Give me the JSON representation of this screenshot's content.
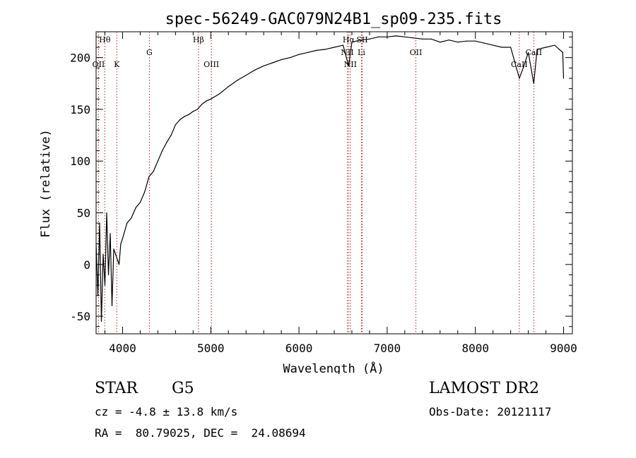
{
  "chart_data": {
    "type": "line",
    "title": "spec-56249-GAC079N24B1_sp09-235.fits",
    "xlabel": "Wavelength (Å)",
    "ylabel": "Flux (relative)",
    "xlim": [
      3700,
      9100
    ],
    "ylim": [
      -67,
      225
    ],
    "xticks": [
      4000,
      5000,
      6000,
      7000,
      8000,
      9000
    ],
    "yticks": [
      -50,
      0,
      50,
      100,
      150,
      200
    ],
    "grid": false,
    "colors": {
      "spectrum": "#000000",
      "line_markers": "#b22222",
      "axes": "#000000"
    },
    "series": [
      {
        "x": [
          3700,
          3720,
          3740,
          3760,
          3780,
          3800,
          3820,
          3840,
          3860,
          3880,
          3900,
          3920,
          3940,
          3960,
          3980,
          4000,
          4050,
          4100,
          4150,
          4200,
          4250,
          4300,
          4350,
          4400,
          4450,
          4500,
          4550,
          4600,
          4650,
          4700,
          4750,
          4800,
          4850,
          4900,
          4950,
          5000,
          5100,
          5200,
          5300,
          5400,
          5500,
          5600,
          5700,
          5800,
          5900,
          6000,
          6100,
          6200,
          6300,
          6400,
          6500,
          6563,
          6600,
          6700,
          6800,
          6900,
          7000,
          7100,
          7200,
          7300,
          7400,
          7500,
          7600,
          7700,
          7800,
          7900,
          8000,
          8100,
          8200,
          8300,
          8400,
          8498,
          8542,
          8600,
          8662,
          8700,
          8800,
          8900,
          8950,
          8990,
          9000
        ],
        "y": [
          20,
          -30,
          40,
          -55,
          10,
          -20,
          50,
          -10,
          30,
          -40,
          15,
          10,
          5,
          0,
          20,
          25,
          40,
          45,
          55,
          60,
          70,
          85,
          90,
          100,
          110,
          118,
          125,
          135,
          140,
          143,
          145,
          148,
          150,
          155,
          158,
          160,
          165,
          172,
          178,
          183,
          188,
          192,
          195,
          198,
          200,
          203,
          205,
          207,
          208,
          210,
          212,
          192,
          215,
          217,
          218,
          220,
          220,
          221,
          220,
          219,
          218,
          218,
          215,
          217,
          215,
          216,
          216,
          214,
          212,
          210,
          210,
          180,
          190,
          205,
          175,
          208,
          210,
          212,
          208,
          205,
          180
        ]
      }
    ],
    "lines": [
      {
        "label": "Hθ",
        "x": 3798,
        "row": "top"
      },
      {
        "label": "OII",
        "x": 3727,
        "row": "low"
      },
      {
        "label": "K",
        "x": 3934,
        "row": "low"
      },
      {
        "label": "G",
        "x": 4304,
        "row": "mid"
      },
      {
        "label": "Hβ",
        "x": 4861,
        "row": "top"
      },
      {
        "label": "OIII",
        "x": 5007,
        "row": "low"
      },
      {
        "label": "Hα",
        "x": 6563,
        "row": "top"
      },
      {
        "label": "NII",
        "x": 6548,
        "row": "mid"
      },
      {
        "label": "NII",
        "x": 6583,
        "row": "low"
      },
      {
        "label": "SII",
        "x": 6716,
        "row": "top"
      },
      {
        "label": "Li",
        "x": 6708,
        "row": "mid"
      },
      {
        "label": "OII",
        "x": 7325,
        "row": "mid"
      },
      {
        "label": "CaII",
        "x": 8498,
        "row": "low"
      },
      {
        "label": "CaII",
        "x": 8662,
        "row": "mid"
      }
    ]
  },
  "info": {
    "class": "STAR",
    "subclass": "G5",
    "redshift": "cz = -4.8 ± 13.8 km/s",
    "coords": "RA =  80.79025, DEC =  24.08694",
    "survey": "LAMOST DR2",
    "obsdate": "Obs-Date: 20121117"
  }
}
